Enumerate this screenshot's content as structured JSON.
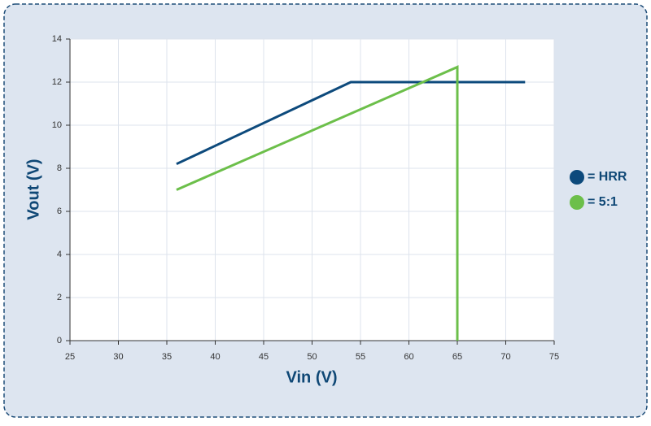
{
  "chart_data": {
    "type": "line",
    "x_label": "Vin (V)",
    "y_label": "Vout (V)",
    "xlim": [
      25,
      75
    ],
    "xticks": [
      25,
      30,
      35,
      40,
      45,
      50,
      55,
      60,
      65,
      70,
      75
    ],
    "ylim": [
      0,
      14
    ],
    "yticks": [
      0,
      2,
      4,
      6,
      8,
      10,
      12,
      14
    ],
    "grid": true,
    "series": [
      {
        "name": "= HRR",
        "color": "#0d4a7c",
        "x": [
          36,
          54,
          72
        ],
        "values": [
          8.2,
          12,
          12
        ]
      },
      {
        "name": "= 5:1",
        "color": "#6cbf4a",
        "x": [
          36,
          65,
          65
        ],
        "values": [
          7,
          12.7,
          0
        ]
      }
    ]
  }
}
